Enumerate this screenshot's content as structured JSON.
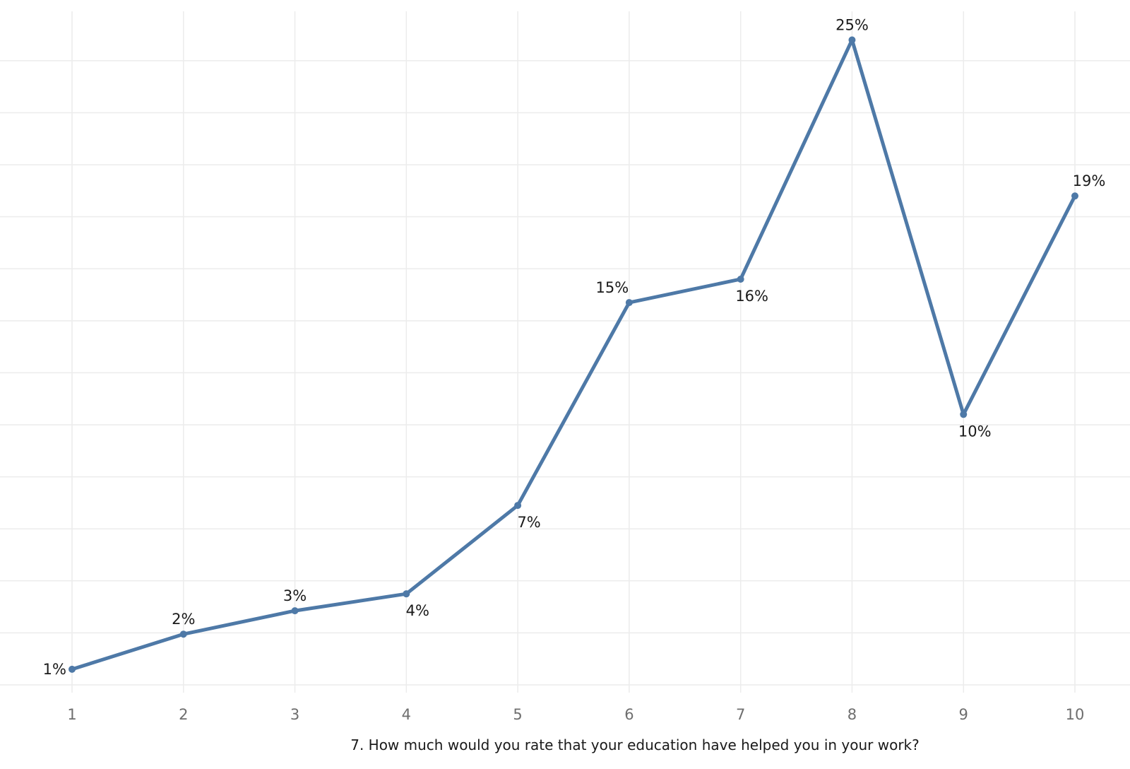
{
  "chart_data": {
    "type": "line",
    "title": "",
    "xlabel": "7. How much would you rate that your education have helped you in your work?",
    "ylabel": "",
    "x": [
      1,
      2,
      3,
      4,
      5,
      6,
      7,
      8,
      9,
      10
    ],
    "x_tick_labels": [
      "1",
      "2",
      "3",
      "4",
      "5",
      "6",
      "7",
      "8",
      "9",
      "10"
    ],
    "series": [
      {
        "values": [
          0.6,
          1.95,
          2.85,
          3.5,
          6.9,
          14.7,
          15.6,
          24.8,
          10.4,
          18.8
        ],
        "labels": [
          "1%",
          "2%",
          "3%",
          "4%",
          "7%",
          "15%",
          "16%",
          "25%",
          "10%",
          "19%"
        ],
        "label_positions": [
          "left",
          "above",
          "above",
          "below",
          "below",
          "above",
          "below",
          "above",
          "below",
          "above"
        ]
      }
    ],
    "ylim": [
      -0.3,
      25.9
    ],
    "grid": true,
    "y_gridline_step": 2,
    "y_gridline_start": 0,
    "y_tick_labels_visible": false,
    "legend": "none",
    "colors": {
      "line": "#4e79a7",
      "grid": "#ececec",
      "tick_text": "#6e6e6e",
      "label_text": "#1a1a1a"
    }
  }
}
